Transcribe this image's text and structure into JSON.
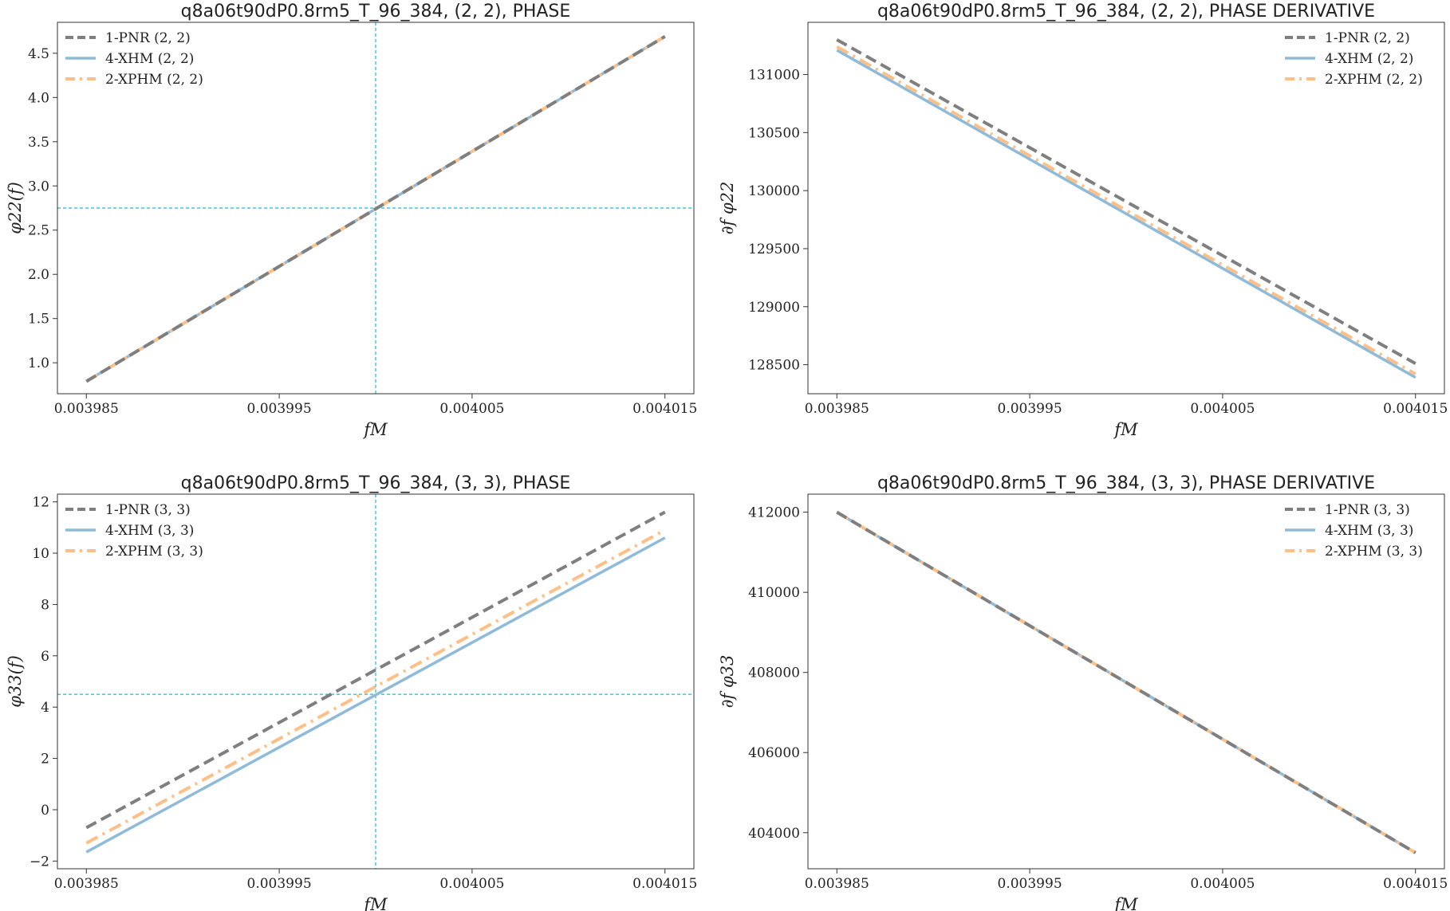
{
  "colors": {
    "pnr": "#7f7f7f",
    "xhm": "#8fbbd9",
    "xphm": "#ffbf86",
    "guide": "#17becf",
    "axis": "#333333"
  },
  "chart_data": [
    {
      "type": "line",
      "title": "q8a06t90dP0.8rm5_T_96_384, (2, 2), PHASE",
      "xlabel": "fM",
      "ylabel": "φ22(f)",
      "xlim": [
        0.0039835,
        0.0040165
      ],
      "ylim": [
        0.65,
        4.85
      ],
      "xticks": [
        0.003985,
        0.003995,
        0.004005,
        0.004015
      ],
      "xtick_labels": [
        "0.003985",
        "0.003995",
        "0.004005",
        "0.004015"
      ],
      "yticks": [
        1.0,
        1.5,
        2.0,
        2.5,
        3.0,
        3.5,
        4.0,
        4.5
      ],
      "ytick_labels": [
        "1.0",
        "1.5",
        "2.0",
        "2.5",
        "3.0",
        "3.5",
        "4.0",
        "4.5"
      ],
      "guides": {
        "x": 0.004,
        "y": 2.75
      },
      "legend": "upper-left",
      "series": [
        {
          "name": "1-PNR (2, 2)",
          "style": "pnr",
          "x": [
            0.003985,
            0.004015
          ],
          "y": [
            0.79,
            4.69
          ]
        },
        {
          "name": "4-XHM (2, 2)",
          "style": "xhm",
          "x": [
            0.003985,
            0.004015
          ],
          "y": [
            0.79,
            4.69
          ]
        },
        {
          "name": "2-XPHM (2, 2)",
          "style": "xphm",
          "x": [
            0.003985,
            0.004015
          ],
          "y": [
            0.79,
            4.69
          ]
        }
      ]
    },
    {
      "type": "line",
      "title": "q8a06t90dP0.8rm5_T_96_384, (2, 2), PHASE DERIVATIVE",
      "xlabel": "fM",
      "ylabel": "∂f φ22",
      "xlim": [
        0.0039835,
        0.0040165
      ],
      "ylim": [
        128250,
        131450
      ],
      "xticks": [
        0.003985,
        0.003995,
        0.004005,
        0.004015
      ],
      "xtick_labels": [
        "0.003985",
        "0.003995",
        "0.004005",
        "0.004015"
      ],
      "yticks": [
        128500,
        129000,
        129500,
        130000,
        130500,
        131000
      ],
      "ytick_labels": [
        "128500",
        "129000",
        "129500",
        "130000",
        "130500",
        "131000"
      ],
      "guides": null,
      "legend": "upper-right",
      "series": [
        {
          "name": "1-PNR (2, 2)",
          "style": "pnr",
          "x": [
            0.003985,
            0.004015
          ],
          "y": [
            131300,
            128510
          ]
        },
        {
          "name": "4-XHM (2, 2)",
          "style": "xhm",
          "x": [
            0.003985,
            0.004015
          ],
          "y": [
            131210,
            128390
          ]
        },
        {
          "name": "2-XPHM (2, 2)",
          "style": "xphm",
          "x": [
            0.003985,
            0.004015
          ],
          "y": [
            131240,
            128420
          ]
        }
      ]
    },
    {
      "type": "line",
      "title": "q8a06t90dP0.8rm5_T_96_384, (3, 3), PHASE",
      "xlabel": "fM",
      "ylabel": "φ33(f)",
      "xlim": [
        0.0039835,
        0.0040165
      ],
      "ylim": [
        -2.3,
        12.3
      ],
      "xticks": [
        0.003985,
        0.003995,
        0.004005,
        0.004015
      ],
      "xtick_labels": [
        "0.003985",
        "0.003995",
        "0.004005",
        "0.004015"
      ],
      "yticks": [
        -2,
        0,
        2,
        4,
        6,
        8,
        10,
        12
      ],
      "ytick_labels": [
        "−2",
        "0",
        "2",
        "4",
        "6",
        "8",
        "10",
        "12"
      ],
      "guides": {
        "x": 0.004,
        "y": 4.5
      },
      "legend": "upper-left",
      "series": [
        {
          "name": "1-PNR (3, 3)",
          "style": "pnr",
          "x": [
            0.003985,
            0.004015
          ],
          "y": [
            -0.7,
            11.6
          ]
        },
        {
          "name": "4-XHM (3, 3)",
          "style": "xhm",
          "x": [
            0.003985,
            0.004015
          ],
          "y": [
            -1.65,
            10.6
          ]
        },
        {
          "name": "2-XPHM (3, 3)",
          "style": "xphm",
          "x": [
            0.003985,
            0.004015
          ],
          "y": [
            -1.3,
            10.9
          ]
        }
      ]
    },
    {
      "type": "line",
      "title": "q8a06t90dP0.8rm5_T_96_384, (3, 3), PHASE DERIVATIVE",
      "xlabel": "fM",
      "ylabel": "∂f φ33",
      "xlim": [
        0.0039835,
        0.0040165
      ],
      "ylim": [
        403100,
        412450
      ],
      "xticks": [
        0.003985,
        0.003995,
        0.004005,
        0.004015
      ],
      "xtick_labels": [
        "0.003985",
        "0.003995",
        "0.004005",
        "0.004015"
      ],
      "yticks": [
        404000,
        406000,
        408000,
        410000,
        412000
      ],
      "ytick_labels": [
        "404000",
        "406000",
        "408000",
        "410000",
        "412000"
      ],
      "guides": null,
      "legend": "upper-right",
      "series": [
        {
          "name": "1-PNR (3, 3)",
          "style": "pnr",
          "x": [
            0.003985,
            0.004015
          ],
          "y": [
            412000,
            403500
          ]
        },
        {
          "name": "4-XHM (3, 3)",
          "style": "xhm",
          "x": [
            0.003985,
            0.004015
          ],
          "y": [
            412000,
            403500
          ]
        },
        {
          "name": "2-XPHM (3, 3)",
          "style": "xphm",
          "x": [
            0.003985,
            0.004015
          ],
          "y": [
            412000,
            403500
          ]
        }
      ]
    }
  ]
}
